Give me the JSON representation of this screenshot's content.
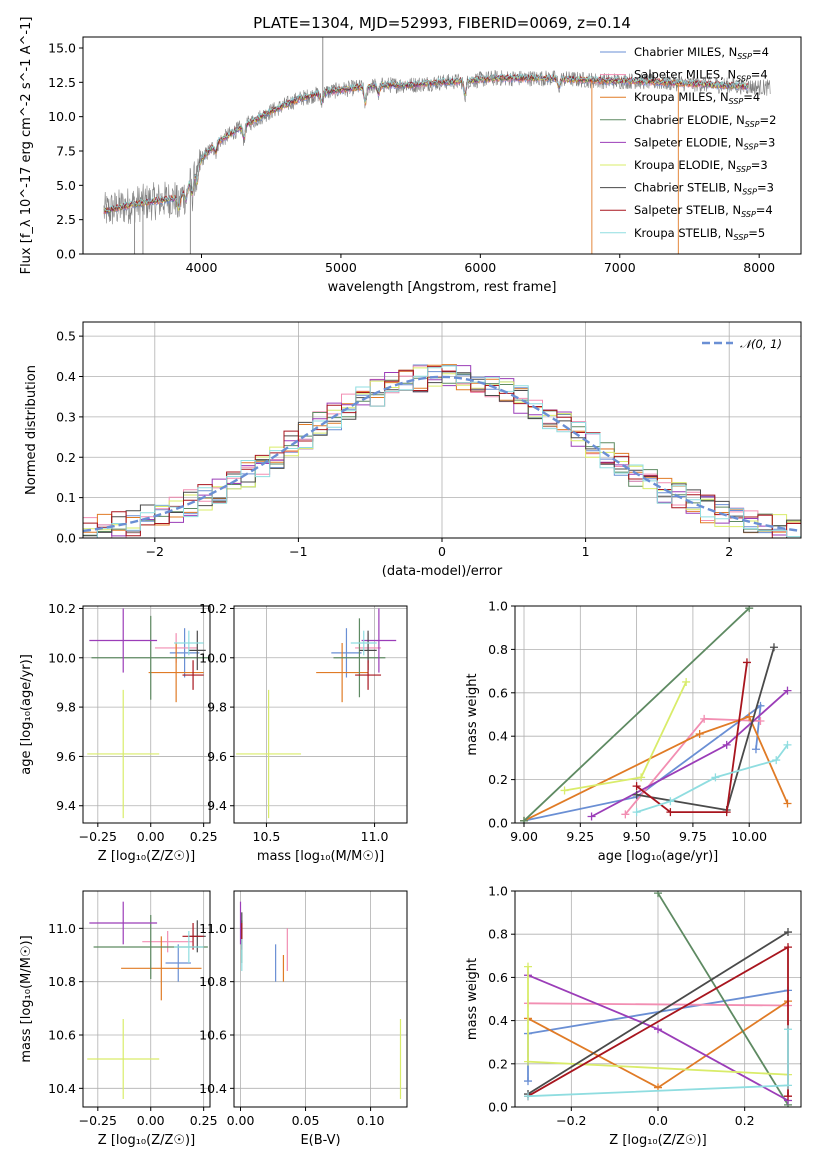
{
  "title": "PLATE=1304, MJD=52993, FIBERID=0069, z=0.14",
  "series_legend": [
    {
      "name": "Chabrier MILES, N$_{SSP}$=4",
      "label_main": "Chabrier MILES, N",
      "label_sub": "SSP",
      "label_tail": "=4",
      "color": "#6a8fd4"
    },
    {
      "name": "Salpeter MILES, N$_{SSP}$=4",
      "label_main": "Salpeter MILES, N",
      "label_sub": "SSP",
      "label_tail": "=4",
      "color": "#f28eb2"
    },
    {
      "name": "Kroupa MILES, N$_{SSP}$=4",
      "label_main": "Kroupa MILES, N",
      "label_sub": "SSP",
      "label_tail": "=4",
      "color": "#e07b26"
    },
    {
      "name": "Chabrier ELODIE, N$_{SSP}$=2",
      "label_main": "Chabrier ELODIE, N",
      "label_sub": "SSP",
      "label_tail": "=2",
      "color": "#5e8a62"
    },
    {
      "name": "Salpeter ELODIE, N$_{SSP}$=3",
      "label_main": "Salpeter ELODIE, N",
      "label_sub": "SSP",
      "label_tail": "=3",
      "color": "#9b3db8"
    },
    {
      "name": "Kroupa ELODIE, N$_{SSP}$=3",
      "label_main": "Kroupa ELODIE, N",
      "label_sub": "SSP",
      "label_tail": "=3",
      "color": "#d9ec6a"
    },
    {
      "name": "Chabrier STELIB, N$_{SSP}$=3",
      "label_main": "Chabrier STELIB, N",
      "label_sub": "SSP",
      "label_tail": "=3",
      "color": "#4a4a4a"
    },
    {
      "name": "Salpeter STELIB, N$_{SSP}$=4",
      "label_main": "Salpeter STELIB, N",
      "label_sub": "SSP",
      "label_tail": "=4",
      "color": "#a8151e"
    },
    {
      "name": "Kroupa STELIB, N$_{SSP}$=5",
      "label_main": "Kroupa STELIB, N",
      "label_sub": "SSP",
      "label_tail": "=5",
      "color": "#8fdde0"
    }
  ],
  "chart_data": [
    {
      "id": "spectrum",
      "type": "line",
      "xlabel": "wavelength [Angstrom, rest frame]",
      "ylabel": "Flux [f_λ 10^-17 erg cm^-2 s^-1 A^-1]",
      "xlim": [
        3150,
        8300
      ],
      "ylim": [
        0,
        15.8
      ],
      "xticks": [
        4000,
        5000,
        6000,
        7000,
        8000
      ],
      "yticks": [
        0.0,
        2.5,
        5.0,
        7.5,
        10.0,
        12.5,
        15.0
      ],
      "ytick_labels": [
        "0.0",
        "2.5",
        "5.0",
        "7.5",
        "10.0",
        "12.5",
        "15.0"
      ],
      "observed_color": "#808080",
      "continuum": {
        "x": [
          3300,
          3500,
          3700,
          3850,
          3950,
          4000,
          4100,
          4200,
          4300,
          4500,
          4700,
          4900,
          5100,
          5300,
          5500,
          5700,
          5900,
          6100,
          6300,
          6500,
          6700,
          6900,
          7100,
          7300,
          7500,
          7700,
          7900,
          8080
        ],
        "y": [
          3.1,
          3.6,
          3.9,
          4.1,
          5.8,
          6.9,
          8.0,
          8.7,
          9.3,
          10.4,
          11.3,
          11.8,
          12.1,
          12.3,
          12.3,
          12.5,
          12.6,
          12.8,
          12.8,
          12.8,
          12.7,
          12.6,
          12.6,
          12.5,
          12.4,
          12.3,
          12.2,
          12.1
        ]
      }
    },
    {
      "id": "residuals",
      "type": "histogram",
      "xlabel": "(data-model)/error",
      "ylabel": "Normed distribution",
      "xlim": [
        -2.5,
        2.5
      ],
      "ylim": [
        0,
        0.535
      ],
      "xticks": [
        -2,
        -1,
        0,
        1,
        2
      ],
      "xtick_labels": [
        "−2",
        "−1",
        "0",
        "1",
        "2"
      ],
      "yticks": [
        0.0,
        0.1,
        0.2,
        0.3,
        0.4,
        0.5
      ],
      "ytick_labels": [
        "0.0",
        "0.1",
        "0.2",
        "0.3",
        "0.4",
        "0.5"
      ],
      "bin_width": 0.1,
      "reference": {
        "name": "𝒩(0, 1)",
        "color": "#6a8fd4"
      }
    },
    {
      "id": "age-vs-Z",
      "type": "scatter",
      "xlabel": "Z [log₁₀(Z/Z☉)]",
      "ylabel": "age  [log₁₀(age/yr)]",
      "xlim": [
        -0.32,
        0.28
      ],
      "ylim": [
        9.33,
        10.21
      ],
      "xticks": [
        -0.25,
        0.0,
        0.25
      ],
      "xtick_labels": [
        "−0.25",
        "0.00",
        "0.25"
      ],
      "yticks": [
        9.4,
        9.6,
        9.8,
        10.0,
        10.2
      ],
      "ytick_labels": [
        "9.4",
        "9.6",
        "9.8",
        "10.0",
        "10.2"
      ],
      "points": [
        {
          "x": 0.16,
          "y": 10.02,
          "xerr": 0.07,
          "yerr": 0.1,
          "color": "#6a8fd4"
        },
        {
          "x": 0.12,
          "y": 10.04,
          "xerr": 0.1,
          "yerr": 0.06,
          "color": "#f28eb2"
        },
        {
          "x": 0.12,
          "y": 9.94,
          "xerr": 0.13,
          "yerr": 0.12,
          "color": "#e07b26"
        },
        {
          "x": 0.0,
          "y": 10.0,
          "xerr": 0.28,
          "yerr": 0.17,
          "color": "#5e8a62"
        },
        {
          "x": -0.13,
          "y": 10.07,
          "xerr": 0.16,
          "yerr": 0.13,
          "color": "#9b3db8"
        },
        {
          "x": -0.13,
          "y": 9.61,
          "xerr": 0.17,
          "yerr": 0.26,
          "color": "#d9ec6a"
        },
        {
          "x": 0.22,
          "y": 10.03,
          "xerr": 0.04,
          "yerr": 0.08,
          "color": "#4a4a4a"
        },
        {
          "x": 0.2,
          "y": 9.93,
          "xerr": 0.05,
          "yerr": 0.06,
          "color": "#a8151e"
        },
        {
          "x": 0.18,
          "y": 10.06,
          "xerr": 0.07,
          "yerr": 0.05,
          "color": "#8fdde0"
        }
      ]
    },
    {
      "id": "age-vs-mass",
      "type": "scatter",
      "xlabel": "mass [log₁₀(M/M☉)]",
      "ylabel": "",
      "xlim": [
        10.35,
        11.15
      ],
      "ylim": [
        9.33,
        10.21
      ],
      "xticks": [
        10.5,
        11.0
      ],
      "xtick_labels": [
        "10.5",
        "11.0"
      ],
      "yticks": [
        9.4,
        9.6,
        9.8,
        10.0,
        10.2
      ],
      "ytick_labels": [
        "9.4",
        "9.6",
        "9.8",
        "10.0",
        "10.2"
      ],
      "points": [
        {
          "x": 10.87,
          "y": 10.02,
          "xerr": 0.07,
          "yerr": 0.1,
          "color": "#6a8fd4"
        },
        {
          "x": 10.97,
          "y": 10.04,
          "xerr": 0.06,
          "yerr": 0.06,
          "color": "#f28eb2"
        },
        {
          "x": 10.85,
          "y": 9.94,
          "xerr": 0.12,
          "yerr": 0.12,
          "color": "#e07b26"
        },
        {
          "x": 10.93,
          "y": 10.0,
          "xerr": 0.12,
          "yerr": 0.16,
          "color": "#5e8a62"
        },
        {
          "x": 11.02,
          "y": 10.07,
          "xerr": 0.08,
          "yerr": 0.13,
          "color": "#9b3db8"
        },
        {
          "x": 10.51,
          "y": 9.61,
          "xerr": 0.15,
          "yerr": 0.26,
          "color": "#d9ec6a"
        },
        {
          "x": 10.97,
          "y": 10.03,
          "xerr": 0.04,
          "yerr": 0.08,
          "color": "#4a4a4a"
        },
        {
          "x": 10.97,
          "y": 9.93,
          "xerr": 0.06,
          "yerr": 0.06,
          "color": "#a8151e"
        },
        {
          "x": 10.95,
          "y": 10.06,
          "xerr": 0.06,
          "yerr": 0.05,
          "color": "#8fdde0"
        }
      ]
    },
    {
      "id": "weight-vs-age",
      "type": "line",
      "xlabel": "age  [log₁₀(age/yr)]",
      "ylabel": "mass weight",
      "xlim": [
        8.96,
        10.23
      ],
      "ylim": [
        0,
        1.0
      ],
      "xticks": [
        9.0,
        9.25,
        9.5,
        9.75,
        10.0
      ],
      "xtick_labels": [
        "9.00",
        "9.25",
        "9.50",
        "9.75",
        "10.00"
      ],
      "yticks": [
        0.0,
        0.2,
        0.4,
        0.6,
        0.8,
        1.0
      ],
      "ytick_labels": [
        "0.0",
        "0.2",
        "0.4",
        "0.6",
        "0.8",
        "1.0"
      ],
      "series": [
        {
          "color": "#6a8fd4",
          "x": [
            9.0,
            9.5,
            10.05,
            10.03
          ],
          "y": [
            0.01,
            0.12,
            0.54,
            0.34
          ]
        },
        {
          "color": "#f28eb2",
          "x": [
            9.45,
            9.8,
            10.05
          ],
          "y": [
            0.04,
            0.48,
            0.47
          ]
        },
        {
          "color": "#e07b26",
          "x": [
            9.0,
            9.78,
            10.0,
            10.17
          ],
          "y": [
            0.01,
            0.41,
            0.49,
            0.09
          ]
        },
        {
          "color": "#5e8a62",
          "x": [
            9.0,
            10.0
          ],
          "y": [
            0.01,
            0.99
          ]
        },
        {
          "color": "#9b3db8",
          "x": [
            9.3,
            9.9,
            10.17
          ],
          "y": [
            0.03,
            0.36,
            0.61
          ]
        },
        {
          "color": "#d9ec6a",
          "x": [
            9.18,
            9.52,
            9.72
          ],
          "y": [
            0.15,
            0.21,
            0.65
          ]
        },
        {
          "color": "#4a4a4a",
          "x": [
            9.5,
            9.9,
            10.11
          ],
          "y": [
            0.13,
            0.06,
            0.81
          ]
        },
        {
          "color": "#a8151e",
          "x": [
            9.5,
            9.65,
            9.9,
            9.99
          ],
          "y": [
            0.17,
            0.05,
            0.05,
            0.74
          ]
        },
        {
          "color": "#8fdde0",
          "x": [
            9.5,
            9.65,
            9.85,
            10.12,
            10.17
          ],
          "y": [
            0.05,
            0.1,
            0.21,
            0.29,
            0.36
          ]
        }
      ]
    },
    {
      "id": "mass-vs-Z",
      "type": "scatter",
      "xlabel": "Z [log₁₀(Z/Z☉)]",
      "ylabel": "mass [log₁₀(M/M☉)]",
      "xlim": [
        -0.32,
        0.28
      ],
      "ylim": [
        10.33,
        11.14
      ],
      "xticks": [
        -0.25,
        0.0,
        0.25
      ],
      "xtick_labels": [
        "−0.25",
        "0.00",
        "0.25"
      ],
      "yticks": [
        10.4,
        10.6,
        10.8,
        11.0
      ],
      "ytick_labels": [
        "10.4",
        "10.6",
        "10.8",
        "11.0"
      ],
      "points": [
        {
          "x": 0.13,
          "y": 10.87,
          "xerr": 0.06,
          "yerr": 0.07,
          "color": "#6a8fd4"
        },
        {
          "x": 0.08,
          "y": 10.95,
          "xerr": 0.12,
          "yerr": 0.04,
          "color": "#f28eb2"
        },
        {
          "x": 0.05,
          "y": 10.85,
          "xerr": 0.19,
          "yerr": 0.12,
          "color": "#e07b26"
        },
        {
          "x": 0.0,
          "y": 10.93,
          "xerr": 0.27,
          "yerr": 0.12,
          "color": "#5e8a62"
        },
        {
          "x": -0.13,
          "y": 11.02,
          "xerr": 0.16,
          "yerr": 0.08,
          "color": "#9b3db8"
        },
        {
          "x": -0.13,
          "y": 10.51,
          "xerr": 0.17,
          "yerr": 0.15,
          "color": "#d9ec6a"
        },
        {
          "x": 0.22,
          "y": 10.97,
          "xerr": 0.04,
          "yerr": 0.06,
          "color": "#4a4a4a"
        },
        {
          "x": 0.2,
          "y": 10.97,
          "xerr": 0.05,
          "yerr": 0.05,
          "color": "#a8151e"
        },
        {
          "x": 0.18,
          "y": 10.93,
          "xerr": 0.07,
          "yerr": 0.06,
          "color": "#8fdde0"
        }
      ]
    },
    {
      "id": "mass-vs-ebv",
      "type": "scatter",
      "xlabel": "E(B-V)",
      "ylabel": "",
      "xlim": [
        -0.005,
        0.128
      ],
      "ylim": [
        10.33,
        11.14
      ],
      "xticks": [
        0.0,
        0.05,
        0.1
      ],
      "xtick_labels": [
        "0.00",
        "0.05",
        "0.10"
      ],
      "yticks": [
        10.4,
        10.6,
        10.8,
        11.0
      ],
      "ytick_labels": [
        "10.4",
        "10.6",
        "10.8",
        "11.0"
      ],
      "points": [
        {
          "x": 0.027,
          "y": 10.87,
          "xerr": 0.0,
          "yerr": 0.07,
          "color": "#6a8fd4"
        },
        {
          "x": 0.036,
          "y": 10.92,
          "xerr": 0.0,
          "yerr": 0.08,
          "color": "#f28eb2"
        },
        {
          "x": 0.033,
          "y": 10.85,
          "xerr": 0.0,
          "yerr": 0.05,
          "color": "#e07b26"
        },
        {
          "x": 0.001,
          "y": 10.95,
          "xerr": 0.0,
          "yerr": 0.08,
          "color": "#5e8a62"
        },
        {
          "x": 0.0,
          "y": 11.02,
          "xerr": 0.0,
          "yerr": 0.08,
          "color": "#9b3db8"
        },
        {
          "x": 0.123,
          "y": 10.51,
          "xerr": 0.0,
          "yerr": 0.15,
          "color": "#d9ec6a"
        },
        {
          "x": 0.001,
          "y": 11.0,
          "xerr": 0.0,
          "yerr": 0.06,
          "color": "#4a4a4a"
        },
        {
          "x": 0.001,
          "y": 10.97,
          "xerr": 0.0,
          "yerr": 0.05,
          "color": "#a8151e"
        },
        {
          "x": 0.001,
          "y": 10.9,
          "xerr": 0.0,
          "yerr": 0.06,
          "color": "#8fdde0"
        }
      ]
    },
    {
      "id": "weight-vs-Z",
      "type": "line",
      "xlabel": "Z [log₁₀(Z/Z☉)]",
      "ylabel": "mass weight",
      "xlim": [
        -0.33,
        0.33
      ],
      "ylim": [
        0,
        1.0
      ],
      "xticks": [
        -0.2,
        0.0,
        0.2
      ],
      "xtick_labels": [
        "−0.2",
        "0.0",
        "0.2"
      ],
      "yticks": [
        0.0,
        0.2,
        0.4,
        0.6,
        0.8,
        1.0
      ],
      "ytick_labels": [
        "0.0",
        "0.2",
        "0.4",
        "0.6",
        "0.8",
        "1.0"
      ],
      "series": [
        {
          "color": "#6a8fd4",
          "x": [
            -0.3,
            -0.3,
            0.3
          ],
          "y": [
            0.12,
            0.34,
            0.54
          ]
        },
        {
          "color": "#f28eb2",
          "x": [
            -0.3,
            0.3
          ],
          "y": [
            0.48,
            0.47
          ]
        },
        {
          "color": "#e07b26",
          "x": [
            -0.3,
            0.0,
            0.3
          ],
          "y": [
            0.41,
            0.09,
            0.49
          ]
        },
        {
          "color": "#5e8a62",
          "x": [
            0.0,
            0.3
          ],
          "y": [
            0.99,
            0.01
          ]
        },
        {
          "color": "#9b3db8",
          "x": [
            -0.3,
            0.0,
            0.3
          ],
          "y": [
            0.61,
            0.36,
            0.03
          ]
        },
        {
          "color": "#d9ec6a",
          "x": [
            -0.3,
            -0.3,
            0.3
          ],
          "y": [
            0.65,
            0.21,
            0.15
          ]
        },
        {
          "color": "#4a4a4a",
          "x": [
            -0.3,
            0.3
          ],
          "y": [
            0.06,
            0.81
          ]
        },
        {
          "color": "#a8151e",
          "x": [
            -0.3,
            0.3,
            0.3
          ],
          "y": [
            0.05,
            0.74,
            0.05
          ]
        },
        {
          "color": "#8fdde0",
          "x": [
            -0.3,
            0.3,
            0.3
          ],
          "y": [
            0.05,
            0.1,
            0.36
          ]
        }
      ]
    }
  ]
}
